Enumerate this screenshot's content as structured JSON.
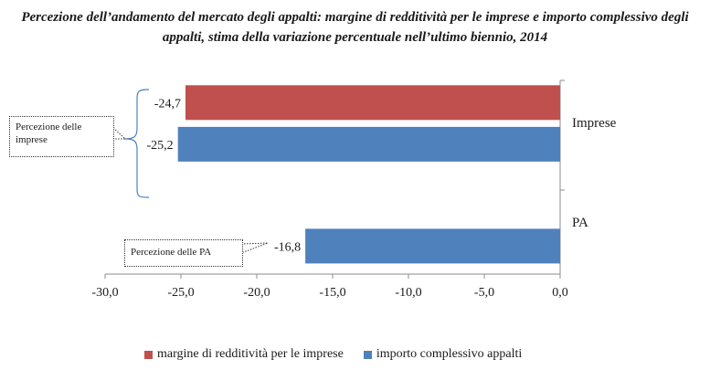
{
  "title": {
    "line1": "Percezione dell’andamento del mercato degli appalti: margine di redditività per le imprese e importo complessivo degli",
    "line2": "appalti, stima della variazione percentuale nell’ultimo biennio, 2014"
  },
  "annotations": {
    "imprese": "Percezione delle imprese",
    "pa": "Percezione delle PA"
  },
  "colors": {
    "margine": "#c0504d",
    "importo": "#4f81bd"
  },
  "chart_data": {
    "type": "bar",
    "orientation": "horizontal",
    "categories": [
      "Imprese",
      "PA"
    ],
    "series": [
      {
        "name": "margine di redditività per le imprese",
        "values": [
          -24.7,
          null
        ],
        "labels": [
          "-24,7",
          ""
        ]
      },
      {
        "name": "importo complessivo appalti",
        "values": [
          -25.2,
          -16.8
        ],
        "labels": [
          "-25,2",
          "-16,8"
        ]
      }
    ],
    "xlim": [
      -30,
      0
    ],
    "xticks": [
      -30,
      -25,
      -20,
      -15,
      -10,
      -5,
      0
    ],
    "xtick_labels": [
      "-30,0",
      "-25,0",
      "-20,0",
      "-15,0",
      "-10,0",
      "-5,0",
      "0,0"
    ],
    "grid": false,
    "legend": "bottom"
  }
}
